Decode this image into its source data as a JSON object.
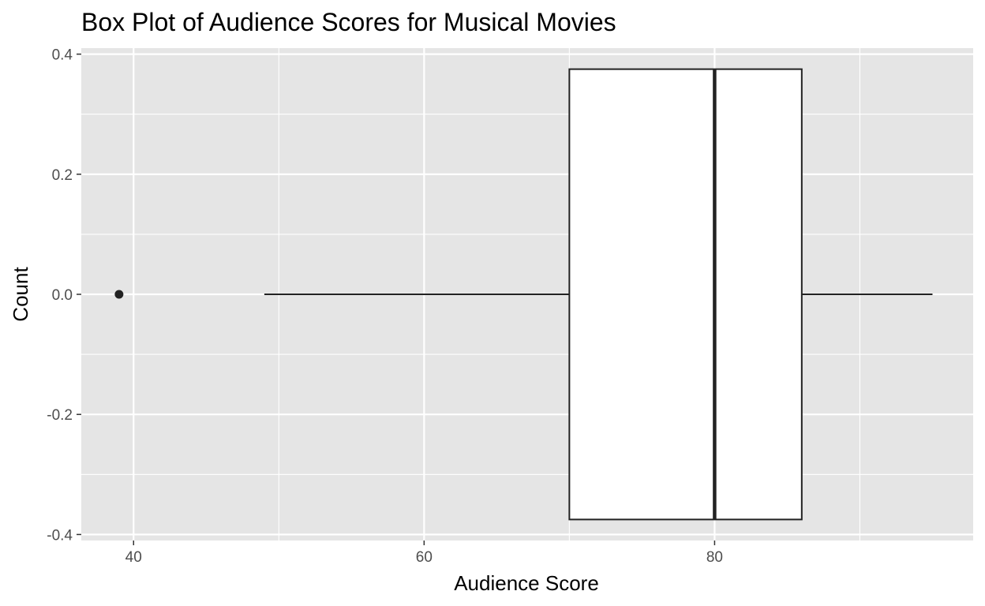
{
  "chart_data": {
    "type": "boxplot",
    "title": "Box Plot of Audience Scores for Musical Movies",
    "xlabel": "Audience Score",
    "ylabel": "Count",
    "xlim": [
      36.4,
      97.8
    ],
    "ylim": [
      -0.41,
      0.41
    ],
    "x_ticks": [
      40,
      60,
      80
    ],
    "x_tick_labels": [
      "40",
      "60",
      "80"
    ],
    "y_ticks": [
      0.4,
      0.2,
      0.0,
      -0.2,
      -0.4
    ],
    "y_tick_labels": [
      "0.4",
      "0.2",
      "0.0",
      "-0.2",
      "-0.4"
    ],
    "grid": true,
    "box": {
      "whisker_low": 49,
      "q1": 70,
      "median": 80,
      "q3": 86,
      "whisker_high": 95,
      "outliers": [
        39
      ],
      "y_center": 0,
      "y_half_width": 0.375
    },
    "colors": {
      "panel_background": "#e5e5e5",
      "grid_line": "#ffffff",
      "box_fill": "#ffffff",
      "box_line": "#222222",
      "outlier": "#222222"
    }
  }
}
